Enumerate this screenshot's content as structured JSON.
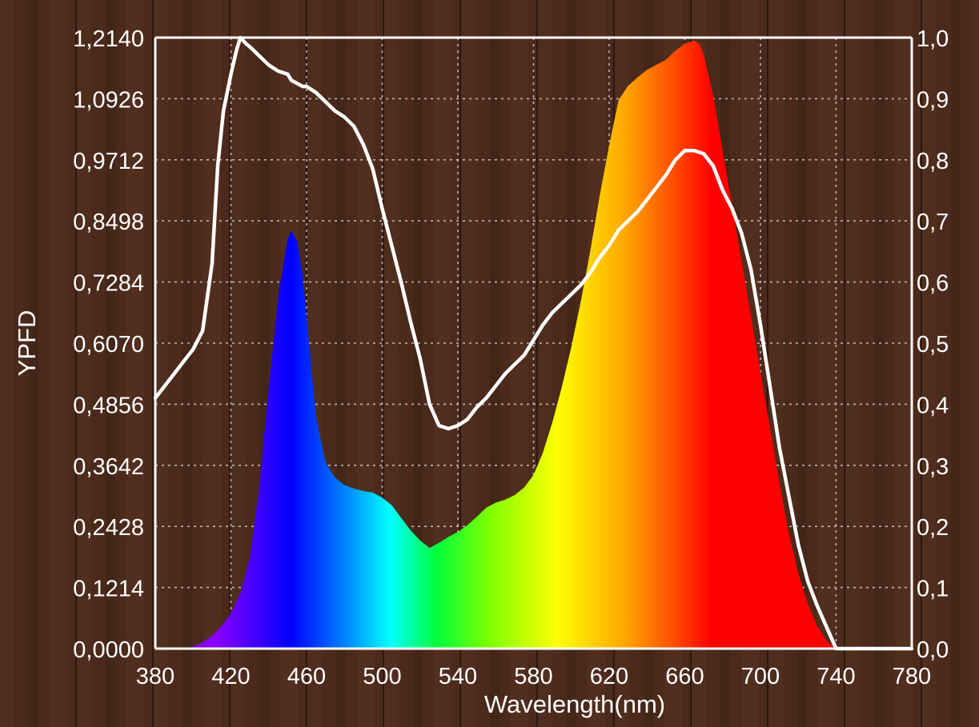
{
  "chart_data": {
    "type": "area",
    "xlabel": "Wavelength(nm)",
    "ylabel": "YPFD",
    "xlim": [
      380,
      780
    ],
    "x_ticks": [
      "380",
      "420",
      "460",
      "500",
      "540",
      "580",
      "620",
      "660",
      "700",
      "740",
      "780"
    ],
    "ylim_left": [
      0,
      1.214
    ],
    "y_ticks_left": [
      "0,0000",
      "0,1214",
      "0,2428",
      "0,3642",
      "0,4856",
      "0,6070",
      "0,7284",
      "0,8498",
      "0,9712",
      "1,0926",
      "1,2140"
    ],
    "ylim_right": [
      0,
      1.0
    ],
    "y_ticks_right": [
      "0,0",
      "0,1",
      "0,2",
      "0,3",
      "0,4",
      "0,5",
      "0,6",
      "0,7",
      "0,8",
      "0,9",
      "1,0"
    ],
    "grid": true,
    "series": [
      {
        "axis": "left",
        "style": "spectrum-filled-area",
        "x": [
          395,
          400,
          405,
          410,
          415,
          420,
          425,
          430,
          435,
          440,
          445,
          450,
          452,
          455,
          458,
          460,
          465,
          470,
          475,
          480,
          485,
          490,
          495,
          500,
          505,
          510,
          515,
          520,
          525,
          530,
          535,
          540,
          545,
          550,
          555,
          560,
          565,
          570,
          575,
          580,
          585,
          590,
          595,
          600,
          605,
          610,
          615,
          620,
          625,
          630,
          635,
          640,
          645,
          650,
          655,
          660,
          665,
          668,
          670,
          675,
          680,
          685,
          690,
          695,
          700,
          705,
          710,
          715,
          720,
          725,
          730,
          735,
          740
        ],
        "values": [
          0.0,
          0.004,
          0.012,
          0.025,
          0.045,
          0.07,
          0.11,
          0.18,
          0.32,
          0.52,
          0.7,
          0.815,
          0.83,
          0.81,
          0.74,
          0.66,
          0.46,
          0.37,
          0.34,
          0.325,
          0.318,
          0.313,
          0.31,
          0.3,
          0.285,
          0.26,
          0.235,
          0.215,
          0.2,
          0.21,
          0.222,
          0.232,
          0.245,
          0.262,
          0.28,
          0.29,
          0.296,
          0.305,
          0.32,
          0.345,
          0.39,
          0.45,
          0.52,
          0.6,
          0.69,
          0.79,
          0.9,
          1.0,
          1.09,
          1.118,
          1.135,
          1.15,
          1.16,
          1.17,
          1.188,
          1.202,
          1.208,
          1.2,
          1.18,
          1.1,
          0.99,
          0.88,
          0.77,
          0.66,
          0.55,
          0.44,
          0.33,
          0.23,
          0.15,
          0.09,
          0.045,
          0.015,
          0.0
        ]
      },
      {
        "axis": "right",
        "style": "white-line",
        "x": [
          380,
          385,
          390,
          395,
          400,
          405,
          410,
          413,
          416,
          420,
          423,
          425,
          428,
          430,
          435,
          440,
          445,
          450,
          452,
          455,
          458,
          460,
          465,
          470,
          475,
          480,
          485,
          490,
          495,
          500,
          505,
          510,
          515,
          520,
          525,
          530,
          535,
          540,
          545,
          550,
          555,
          560,
          565,
          570,
          575,
          580,
          585,
          590,
          595,
          600,
          605,
          610,
          615,
          620,
          625,
          630,
          635,
          640,
          645,
          650,
          655,
          660,
          665,
          670,
          675,
          680,
          685,
          690,
          695,
          700,
          705,
          710,
          715,
          720,
          725,
          730,
          735,
          740,
          745,
          750,
          760,
          770,
          780
        ],
        "values": [
          0.41,
          0.43,
          0.45,
          0.47,
          0.49,
          0.52,
          0.63,
          0.79,
          0.88,
          0.94,
          0.98,
          1.0,
          0.99,
          0.985,
          0.97,
          0.955,
          0.945,
          0.94,
          0.93,
          0.925,
          0.92,
          0.92,
          0.91,
          0.895,
          0.88,
          0.87,
          0.855,
          0.825,
          0.785,
          0.72,
          0.66,
          0.6,
          0.535,
          0.475,
          0.4,
          0.365,
          0.36,
          0.365,
          0.375,
          0.395,
          0.41,
          0.43,
          0.45,
          0.465,
          0.48,
          0.505,
          0.53,
          0.55,
          0.565,
          0.58,
          0.595,
          0.615,
          0.64,
          0.66,
          0.685,
          0.7,
          0.715,
          0.735,
          0.755,
          0.775,
          0.8,
          0.815,
          0.815,
          0.81,
          0.79,
          0.75,
          0.72,
          0.68,
          0.62,
          0.53,
          0.43,
          0.33,
          0.25,
          0.17,
          0.11,
          0.07,
          0.035,
          0.0,
          0.0,
          0.0,
          0.0,
          0.0,
          0.0
        ]
      }
    ],
    "colors": {
      "background": "#4a2a1b",
      "plot_line": "#ffffff",
      "grid": "#d9d9d9",
      "spectrum": [
        "#7b00ff",
        "#0000ff",
        "#00ffff",
        "#00ff00",
        "#ffff00",
        "#ff8c00",
        "#ff0000"
      ]
    }
  }
}
